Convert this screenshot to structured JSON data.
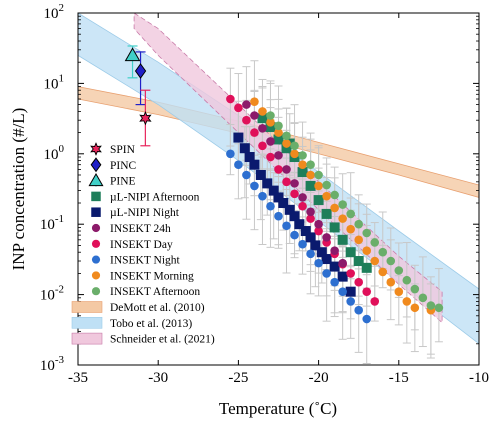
{
  "chart_data": {
    "type": "scatter",
    "xlabel": "Temperature (˚C)",
    "ylabel": "INP concentration (#/L)",
    "xlim": [
      -35,
      -10
    ],
    "ylim": [
      0.001,
      100
    ],
    "y_scale": "log",
    "x_ticks": [
      "-35",
      "-30",
      "-25",
      "-20",
      "-15",
      "-10"
    ],
    "y_ticks": [
      {
        "base": "10",
        "exp": "-3"
      },
      {
        "base": "10",
        "exp": "-2"
      },
      {
        "base": "10",
        "exp": "-1"
      },
      {
        "base": "10",
        "exp": "0"
      },
      {
        "base": "10",
        "exp": "1"
      },
      {
        "base": "10",
        "exp": "2"
      }
    ],
    "legend_position": "left",
    "series": [
      {
        "name": "SPIN",
        "marker": "hexagram",
        "color": "#e8255c",
        "edge": "#000000",
        "points": [
          {
            "x": -30.8,
            "y": 3.2,
            "ylo": 1.3,
            "yhi": 8
          }
        ]
      },
      {
        "name": "PINC",
        "marker": "diamond",
        "color": "#2020c8",
        "edge": "#000000",
        "points": [
          {
            "x": -31.1,
            "y": 15,
            "ylo": 5,
            "yhi": 28
          }
        ]
      },
      {
        "name": "PINE",
        "marker": "triangle",
        "color": "#40d0c8",
        "edge": "#000000",
        "points": [
          {
            "x": -31.6,
            "y": 25,
            "ylo": 12,
            "yhi": 34
          }
        ]
      },
      {
        "name": "µL-NIPI Afternoon",
        "marker": "square",
        "color": "#1e7e5a",
        "points": [
          {
            "x": -23.5,
            "y": 3.2
          },
          {
            "x": -23.0,
            "y": 2.4
          },
          {
            "x": -22.5,
            "y": 1.6
          },
          {
            "x": -22.0,
            "y": 1.2
          },
          {
            "x": -21.5,
            "y": 0.9
          },
          {
            "x": -21.0,
            "y": 0.55
          },
          {
            "x": -20.5,
            "y": 0.35
          },
          {
            "x": -20.0,
            "y": 0.22
          },
          {
            "x": -19.5,
            "y": 0.14
          },
          {
            "x": -19.0,
            "y": 0.09
          },
          {
            "x": -18.5,
            "y": 0.06
          },
          {
            "x": -18.0,
            "y": 0.04
          },
          {
            "x": -17.5,
            "y": 0.03
          },
          {
            "x": -17.0,
            "y": 0.024
          },
          {
            "x": -21.8,
            "y": 1.4
          }
        ]
      },
      {
        "name": "µL-NIPI Night",
        "marker": "square",
        "color": "#0a1a6e",
        "points": [
          {
            "x": -25.0,
            "y": 1.7
          },
          {
            "x": -24.6,
            "y": 1.2
          },
          {
            "x": -24.3,
            "y": 0.9
          },
          {
            "x": -24.0,
            "y": 0.7
          },
          {
            "x": -23.6,
            "y": 0.5
          },
          {
            "x": -23.2,
            "y": 0.38
          },
          {
            "x": -22.8,
            "y": 0.3
          },
          {
            "x": -22.5,
            "y": 0.24
          },
          {
            "x": -22.2,
            "y": 0.2
          },
          {
            "x": -21.8,
            "y": 0.16
          },
          {
            "x": -21.5,
            "y": 0.13
          },
          {
            "x": -21.2,
            "y": 0.1
          },
          {
            "x": -20.8,
            "y": 0.08
          },
          {
            "x": -20.5,
            "y": 0.065
          },
          {
            "x": -20.2,
            "y": 0.05
          },
          {
            "x": -19.8,
            "y": 0.04
          },
          {
            "x": -19.5,
            "y": 0.032
          },
          {
            "x": -19.0,
            "y": 0.025
          },
          {
            "x": -18.5,
            "y": 0.018
          },
          {
            "x": -18.0,
            "y": 0.011
          }
        ]
      },
      {
        "name": "INSEKT 24h",
        "marker": "circle",
        "color": "#8c1a6a",
        "points": [
          {
            "x": -24.5,
            "y": 5.0
          },
          {
            "x": -24.0,
            "y": 3.5
          },
          {
            "x": -23.5,
            "y": 2.3
          },
          {
            "x": -23.0,
            "y": 1.5
          },
          {
            "x": -22.5,
            "y": 0.95
          },
          {
            "x": -22.0,
            "y": 0.6
          },
          {
            "x": -21.5,
            "y": 0.38
          },
          {
            "x": -21.0,
            "y": 0.24
          },
          {
            "x": -20.5,
            "y": 0.15
          },
          {
            "x": -20.0,
            "y": 0.1
          },
          {
            "x": -19.5,
            "y": 0.065
          },
          {
            "x": -19.0,
            "y": 0.042
          },
          {
            "x": -18.5,
            "y": 0.028
          }
        ]
      },
      {
        "name": "INSEKT Day",
        "marker": "circle",
        "color": "#e0105a",
        "points": [
          {
            "x": -25.5,
            "y": 6.0
          },
          {
            "x": -25.0,
            "y": 4.5
          },
          {
            "x": -24.5,
            "y": 3.0
          },
          {
            "x": -24.0,
            "y": 2.0
          },
          {
            "x": -23.5,
            "y": 1.3
          },
          {
            "x": -23.0,
            "y": 0.9
          },
          {
            "x": -22.5,
            "y": 0.6
          },
          {
            "x": -22.0,
            "y": 0.4
          },
          {
            "x": -21.5,
            "y": 0.27
          },
          {
            "x": -21.0,
            "y": 0.18
          },
          {
            "x": -20.5,
            "y": 0.12
          },
          {
            "x": -20.0,
            "y": 0.08
          },
          {
            "x": -19.5,
            "y": 0.055
          },
          {
            "x": -19.0,
            "y": 0.038
          },
          {
            "x": -18.5,
            "y": 0.027
          },
          {
            "x": -18.0,
            "y": 0.02
          },
          {
            "x": -17.5,
            "y": 0.015
          },
          {
            "x": -17.0,
            "y": 0.011
          },
          {
            "x": -16.5,
            "y": 0.008
          }
        ]
      },
      {
        "name": "INSEKT Night",
        "marker": "circle",
        "color": "#2d6fd0",
        "points": [
          {
            "x": -25.5,
            "y": 1.0
          },
          {
            "x": -25.0,
            "y": 0.7
          },
          {
            "x": -24.5,
            "y": 0.5
          },
          {
            "x": -24.0,
            "y": 0.35
          },
          {
            "x": -23.5,
            "y": 0.25
          },
          {
            "x": -23.0,
            "y": 0.18
          },
          {
            "x": -22.5,
            "y": 0.13
          },
          {
            "x": -22.0,
            "y": 0.095
          },
          {
            "x": -21.5,
            "y": 0.07
          },
          {
            "x": -21.0,
            "y": 0.052
          },
          {
            "x": -20.5,
            "y": 0.038
          },
          {
            "x": -20.0,
            "y": 0.028
          },
          {
            "x": -19.5,
            "y": 0.02
          },
          {
            "x": -19.0,
            "y": 0.015
          },
          {
            "x": -18.5,
            "y": 0.011
          },
          {
            "x": -18.0,
            "y": 0.008
          },
          {
            "x": -17.5,
            "y": 0.006
          },
          {
            "x": -17.0,
            "y": 0.0045
          }
        ]
      },
      {
        "name": "INSEKT Morning",
        "marker": "circle",
        "color": "#f08a1e",
        "points": [
          {
            "x": -24.0,
            "y": 5.5
          },
          {
            "x": -23.5,
            "y": 4.0
          },
          {
            "x": -23.0,
            "y": 2.8
          },
          {
            "x": -22.5,
            "y": 2.0
          },
          {
            "x": -22.0,
            "y": 1.4
          },
          {
            "x": -21.5,
            "y": 1.0
          },
          {
            "x": -21.0,
            "y": 0.7
          },
          {
            "x": -20.5,
            "y": 0.5
          },
          {
            "x": -20.0,
            "y": 0.35
          },
          {
            "x": -19.5,
            "y": 0.25
          },
          {
            "x": -19.0,
            "y": 0.17
          },
          {
            "x": -18.5,
            "y": 0.12
          },
          {
            "x": -18.0,
            "y": 0.085
          },
          {
            "x": -17.5,
            "y": 0.06
          },
          {
            "x": -17.0,
            "y": 0.042
          },
          {
            "x": -16.5,
            "y": 0.03
          },
          {
            "x": -16.0,
            "y": 0.021
          },
          {
            "x": -15.5,
            "y": 0.015
          },
          {
            "x": -15.0,
            "y": 0.011
          },
          {
            "x": -14.5,
            "y": 0.008
          },
          {
            "x": -14.0,
            "y": 0.0065
          },
          {
            "x": -13.0,
            "y": 0.006
          }
        ]
      },
      {
        "name": "INSEKT Afternoon",
        "marker": "circle",
        "color": "#6aae6a",
        "points": [
          {
            "x": -23.0,
            "y": 3.5
          },
          {
            "x": -22.5,
            "y": 2.5
          },
          {
            "x": -22.0,
            "y": 1.8
          },
          {
            "x": -21.5,
            "y": 1.3
          },
          {
            "x": -21.0,
            "y": 0.95
          },
          {
            "x": -20.5,
            "y": 0.7
          },
          {
            "x": -20.0,
            "y": 0.5
          },
          {
            "x": -19.5,
            "y": 0.36
          },
          {
            "x": -19.0,
            "y": 0.26
          },
          {
            "x": -18.5,
            "y": 0.19
          },
          {
            "x": -18.0,
            "y": 0.14
          },
          {
            "x": -17.5,
            "y": 0.1
          },
          {
            "x": -17.0,
            "y": 0.075
          },
          {
            "x": -16.5,
            "y": 0.055
          },
          {
            "x": -16.0,
            "y": 0.04
          },
          {
            "x": -15.5,
            "y": 0.03
          },
          {
            "x": -15.0,
            "y": 0.022
          },
          {
            "x": -14.5,
            "y": 0.016
          },
          {
            "x": -14.0,
            "y": 0.012
          },
          {
            "x": -13.5,
            "y": 0.009
          },
          {
            "x": -13.0,
            "y": 0.007
          },
          {
            "x": -12.5,
            "y": 0.0065
          }
        ]
      }
    ],
    "bands": [
      {
        "name": "DeMott et al. (2010)",
        "fill": "#f4c9a4",
        "edge": "#e8a070",
        "x": [
          -35,
          -30,
          -25,
          -20,
          -15,
          -10
        ],
        "lower": [
          6.0,
          3.6,
          1.95,
          1.0,
          0.5,
          0.24
        ],
        "upper": [
          9.0,
          5.4,
          2.9,
          1.45,
          0.72,
          0.36
        ]
      },
      {
        "name": "Tobo et al. (2013)",
        "fill": "#bfe0f5",
        "edge": "#9ccbe8",
        "x": [
          -35,
          -30,
          -25,
          -20,
          -15,
          -10
        ],
        "lower": [
          25,
          5.0,
          0.8,
          0.11,
          0.015,
          0.002
        ],
        "upper": [
          100,
          20,
          3.5,
          0.55,
          0.08,
          0.012
        ]
      },
      {
        "name": "Schneider et al. (2021)",
        "fill": "#f0c8dd",
        "edge": "#c87aa8",
        "x": [
          -31.5,
          -30,
          -25,
          -20,
          -15,
          -12.3
        ],
        "lower": [
          60,
          25,
          2.0,
          0.16,
          0.014,
          0.004
        ],
        "upper": [
          100,
          60,
          5.0,
          0.4,
          0.035,
          0.011
        ]
      }
    ],
    "gray_error_bars": true
  }
}
